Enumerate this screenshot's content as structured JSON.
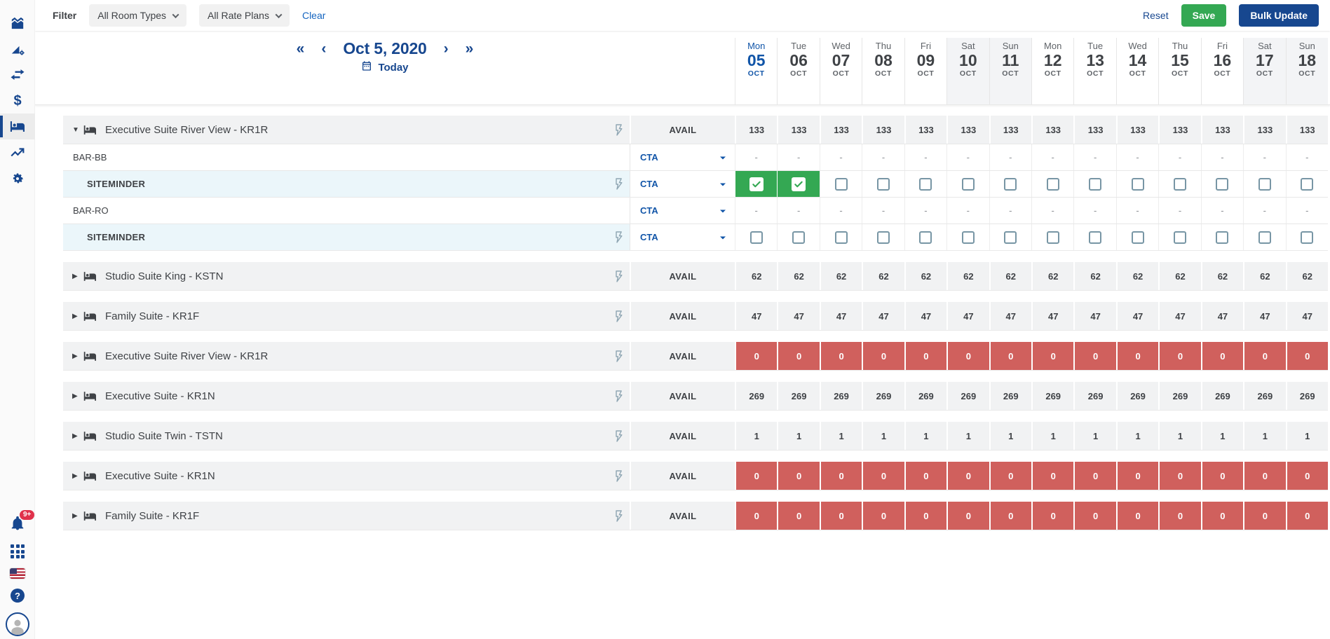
{
  "colors": {
    "brand_blue": "#17478f",
    "link_blue": "#1565c0",
    "today_blue": "#1155a8",
    "green": "#34a853",
    "red": "#d0605d"
  },
  "sidebar": {
    "icons_top": [
      "analytics-chart-icon",
      "forecast-settings-icon",
      "swap-arrows-icon",
      "pricing-dollar-icon",
      "rooms-inventory-icon",
      "trends-icon",
      "settings-gear-icon"
    ],
    "active_icon": "rooms-inventory-icon",
    "notification_badge": "9+",
    "icons_bottom": [
      "notifications-bell-icon",
      "apps-grid-icon",
      "language-flag-icon",
      "help-icon",
      "user-avatar"
    ]
  },
  "filter_bar": {
    "filter_label": "Filter",
    "room_types_value": "All Room Types",
    "rate_plans_value": "All Rate Plans",
    "clear_label": "Clear",
    "reset_label": "Reset",
    "save_label": "Save",
    "bulk_update_label": "Bulk Update"
  },
  "date_nav": {
    "first_arrow": "«",
    "prev_arrow": "‹",
    "current_date": "Oct 5, 2020",
    "next_arrow": "›",
    "last_arrow": "»",
    "today_label": "Today"
  },
  "calendar": {
    "days": [
      {
        "dow": "Mon",
        "day": "05",
        "month": "OCT",
        "today": true,
        "weekend": false
      },
      {
        "dow": "Tue",
        "day": "06",
        "month": "OCT",
        "today": false,
        "weekend": false
      },
      {
        "dow": "Wed",
        "day": "07",
        "month": "OCT",
        "today": false,
        "weekend": false
      },
      {
        "dow": "Thu",
        "day": "08",
        "month": "OCT",
        "today": false,
        "weekend": false
      },
      {
        "dow": "Fri",
        "day": "09",
        "month": "OCT",
        "today": false,
        "weekend": false
      },
      {
        "dow": "Sat",
        "day": "10",
        "month": "OCT",
        "today": false,
        "weekend": true
      },
      {
        "dow": "Sun",
        "day": "11",
        "month": "OCT",
        "today": false,
        "weekend": true
      },
      {
        "dow": "Mon",
        "day": "12",
        "month": "OCT",
        "today": false,
        "weekend": false
      },
      {
        "dow": "Tue",
        "day": "13",
        "month": "OCT",
        "today": false,
        "weekend": false
      },
      {
        "dow": "Wed",
        "day": "14",
        "month": "OCT",
        "today": false,
        "weekend": false
      },
      {
        "dow": "Thu",
        "day": "15",
        "month": "OCT",
        "today": false,
        "weekend": false
      },
      {
        "dow": "Fri",
        "day": "16",
        "month": "OCT",
        "today": false,
        "weekend": false
      },
      {
        "dow": "Sat",
        "day": "17",
        "month": "OCT",
        "today": false,
        "weekend": true
      },
      {
        "dow": "Sun",
        "day": "18",
        "month": "OCT",
        "today": false,
        "weekend": true
      }
    ]
  },
  "inventory": {
    "avail_label": "AVAIL",
    "cta_label": "CTA",
    "dash": "-",
    "groups": [
      {
        "name": "Executive Suite River View - KR1R",
        "expanded": true,
        "avail": "133",
        "zero": false,
        "plans": [
          {
            "name": "BAR-BB",
            "indent": 1,
            "cells": "dash",
            "lightning": false,
            "checked_days": []
          },
          {
            "name": "SITEMINDER",
            "indent": 2,
            "cells": "checkbox",
            "lightning": true,
            "checked_days": [
              0,
              1
            ]
          },
          {
            "name": "BAR-RO",
            "indent": 1,
            "cells": "dash",
            "lightning": false,
            "checked_days": []
          },
          {
            "name": "SITEMINDER",
            "indent": 2,
            "cells": "checkbox",
            "lightning": true,
            "checked_days": []
          }
        ]
      },
      {
        "name": "Studio Suite King - KSTN",
        "expanded": false,
        "avail": "62",
        "zero": false,
        "plans": []
      },
      {
        "name": "Family Suite - KR1F",
        "expanded": false,
        "avail": "47",
        "zero": false,
        "plans": []
      },
      {
        "name": "Executive Suite River View - KR1R",
        "expanded": false,
        "avail": "0",
        "zero": true,
        "plans": []
      },
      {
        "name": "Executive Suite - KR1N",
        "expanded": false,
        "avail": "269",
        "zero": false,
        "plans": []
      },
      {
        "name": "Studio Suite Twin - TSTN",
        "expanded": false,
        "avail": "1",
        "zero": false,
        "plans": []
      },
      {
        "name": "Executive Suite - KR1N",
        "expanded": false,
        "avail": "0",
        "zero": true,
        "plans": []
      },
      {
        "name": "Family Suite - KR1F",
        "expanded": false,
        "avail": "0",
        "zero": true,
        "plans": []
      }
    ]
  }
}
